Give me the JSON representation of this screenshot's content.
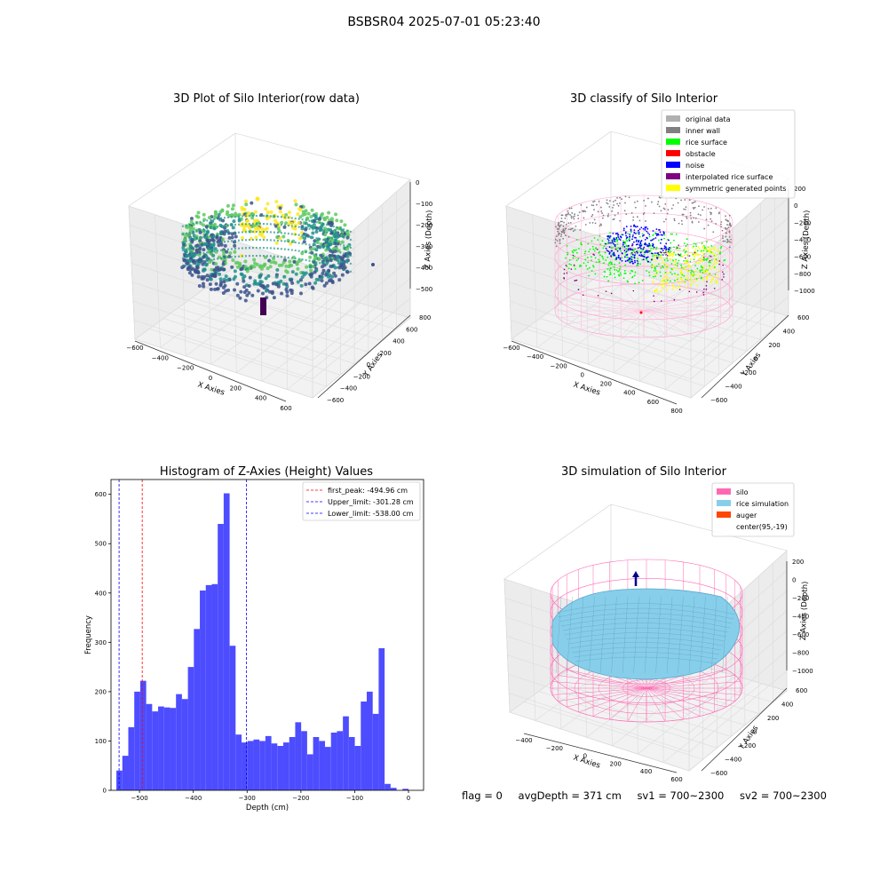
{
  "figure": {
    "suptitle": "BSBSR04 2025-07-01 05:23:40",
    "status": {
      "flag": "flag = 0",
      "avg_depth": "avgDepth = 371 cm",
      "sv1": "sv1 = 700~2300",
      "sv2": "sv2 = 700~2300"
    }
  },
  "chart_data": [
    {
      "type": "scatter",
      "projection": "3d",
      "title": "3D Plot of Silo Interior(row data)",
      "xlabel": "X Axies",
      "ylabel": "Y Axies",
      "zlabel": "Z Axies (Depth)",
      "x_ticks": [
        "−600",
        "−400",
        "−200",
        "0",
        "200",
        "400",
        "600"
      ],
      "y_ticks": [
        "−600",
        "−400",
        "−200",
        "0",
        "200",
        "400",
        "600",
        "800"
      ],
      "z_ticks": [
        "0",
        "−100",
        "−200",
        "−300",
        "−400",
        "−500"
      ],
      "colormap": "viridis",
      "colors": [
        "#440154",
        "#3b528b",
        "#21918c",
        "#5ec962",
        "#fde725"
      ]
    },
    {
      "type": "scatter",
      "projection": "3d",
      "title": "3D classify of Silo Interior",
      "xlabel": "X Axies",
      "ylabel": "Y Axies",
      "zlabel": "Z Axies (Depth)",
      "x_ticks": [
        "−600",
        "−400",
        "−200",
        "0",
        "200",
        "400",
        "600",
        "800"
      ],
      "y_ticks": [
        "−600",
        "−400",
        "−200",
        "0",
        "200",
        "400",
        "600"
      ],
      "z_ticks": [
        "200",
        "0",
        "−200",
        "−400",
        "−600",
        "−800",
        "−1000"
      ],
      "legend": [
        {
          "label": "original data",
          "color": "#b0b0b0"
        },
        {
          "label": "inner wall",
          "color": "#808080"
        },
        {
          "label": "rice surface",
          "color": "#00ff00"
        },
        {
          "label": "obstacle",
          "color": "#ff0000"
        },
        {
          "label": "noise",
          "color": "#0000ff"
        },
        {
          "label": "interpolated rice surface",
          "color": "#800080"
        },
        {
          "label": "symmetric generated points",
          "color": "#ffff00"
        }
      ],
      "legend_loc": "upper right"
    },
    {
      "type": "bar",
      "title": "Histogram of Z-Axies (Height) Values",
      "xlabel": "Depth (cm)",
      "ylabel": "Frequency",
      "bar_color": "#4d4dff",
      "bin_start": -543,
      "bin_width": 11.08,
      "values": [
        40,
        70,
        128,
        200,
        222,
        175,
        160,
        170,
        168,
        167,
        195,
        185,
        250,
        327,
        405,
        416,
        418,
        540,
        602,
        293,
        113,
        97,
        100,
        103,
        100,
        110,
        95,
        90,
        97,
        108,
        138,
        120,
        73,
        108,
        100,
        88,
        117,
        120,
        150,
        108,
        90,
        180,
        200,
        155,
        288,
        13,
        5,
        0,
        3,
        0
      ],
      "xlim": [
        -553,
        28
      ],
      "ylim": [
        0,
        630
      ],
      "x_ticks": [
        -500,
        -400,
        -300,
        -200,
        -100,
        0
      ],
      "x_tick_labels": [
        "−500",
        "−400",
        "−300",
        "−200",
        "−100",
        "0"
      ],
      "y_ticks": [
        0,
        100,
        200,
        300,
        400,
        500,
        600
      ],
      "vlines": [
        {
          "x": -494.96,
          "color": "#ff0000",
          "label": "first_peak: -494.96 cm"
        },
        {
          "x": -301.28,
          "color": "#0000ff",
          "label": "Upper_limit: -301.28 cm"
        },
        {
          "x": -538.0,
          "color": "#0000ff",
          "label": "Lower_limit: -538.00 cm"
        }
      ],
      "legend_loc": "upper right"
    },
    {
      "type": "area",
      "projection": "3d",
      "title": "3D simulation of Silo Interior",
      "xlabel": "X Axies",
      "ylabel": "Y Axies",
      "zlabel": "Z Axies (Depth)",
      "x_ticks": [
        "−400",
        "−200",
        "0",
        "200",
        "400",
        "600"
      ],
      "y_ticks": [
        "−600",
        "−400",
        "−200",
        "0",
        "200",
        "400",
        "600"
      ],
      "z_ticks": [
        "200",
        "0",
        "−200",
        "−400",
        "−600",
        "−800",
        "−1000"
      ],
      "legend": [
        {
          "label": "silo",
          "color": "#ff69b4"
        },
        {
          "label": "rice simulation",
          "color": "#87ceeb"
        },
        {
          "label": "auger",
          "color": "#ff4500"
        },
        {
          "label": "center(95,-19)",
          "color": ""
        }
      ],
      "legend_loc": "upper right"
    }
  ]
}
